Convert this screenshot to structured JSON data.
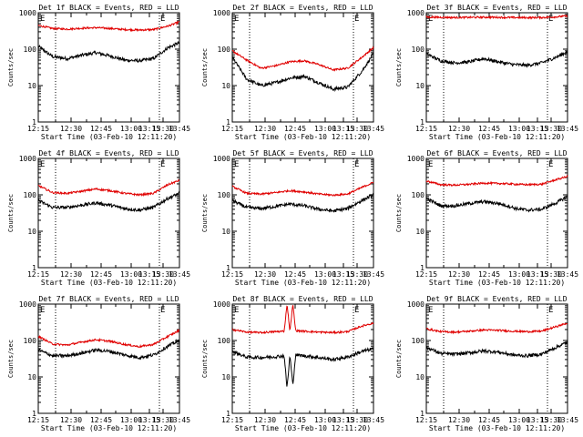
{
  "chart_data": [
    {
      "type": "line",
      "title": "Det 1f BLACK = Events, RED = LLD",
      "ylabel": "Counts/sec",
      "xlabel": "Start Time (03-Feb-10 12:11:20)",
      "xticks": [
        "12:15",
        "12:30",
        "12:45",
        "13:00",
        "13:15",
        "13:30",
        "13:45"
      ],
      "yticks": [
        "1",
        "10",
        "100",
        "1000"
      ],
      "ylim": [
        1,
        1000
      ],
      "xrange_minutes": [
        0,
        98
      ],
      "yscale": "log",
      "markers": [
        "E",
        "E"
      ],
      "series": [
        {
          "color": "#000000",
          "x": [
            0,
            10,
            20,
            30,
            40,
            50,
            60,
            70,
            80,
            90,
            98
          ],
          "values": [
            120,
            62,
            55,
            68,
            80,
            65,
            50,
            48,
            55,
            110,
            150
          ]
        },
        {
          "color": "#e00000",
          "x": [
            0,
            10,
            20,
            30,
            40,
            50,
            60,
            70,
            80,
            90,
            98
          ],
          "values": [
            450,
            370,
            355,
            375,
            390,
            370,
            345,
            335,
            345,
            430,
            560
          ]
        }
      ]
    },
    {
      "type": "line",
      "title": "Det 2f BLACK = Events, RED = LLD",
      "ylabel": "Counts/sec",
      "xlabel": "Start Time (03-Feb-10 12:11:20)",
      "xticks": [
        "12:15",
        "12:30",
        "12:45",
        "13:00",
        "13:15",
        "13:30",
        "13:45"
      ],
      "yticks": [
        "1",
        "10",
        "100",
        "1000"
      ],
      "ylim": [
        1,
        1000
      ],
      "xrange_minutes": [
        0,
        98
      ],
      "yscale": "log",
      "markers": [
        "E",
        "E"
      ],
      "series": [
        {
          "color": "#000000",
          "x": [
            0,
            10,
            20,
            30,
            40,
            50,
            60,
            70,
            80,
            90,
            98
          ],
          "values": [
            60,
            15,
            10,
            12,
            16,
            18,
            12,
            8,
            9,
            25,
            75
          ]
        },
        {
          "color": "#e00000",
          "x": [
            0,
            10,
            20,
            30,
            40,
            50,
            60,
            70,
            80,
            90,
            98
          ],
          "values": [
            90,
            50,
            30,
            35,
            45,
            48,
            38,
            27,
            30,
            60,
            110
          ]
        }
      ]
    },
    {
      "type": "line",
      "title": "Det 3f BLACK = Events, RED = LLD",
      "ylabel": "Counts/sec",
      "xlabel": "Start Time (03-Feb-10 12:11:20)",
      "xticks": [
        "12:15",
        "12:30",
        "12:45",
        "13:00",
        "13:15",
        "13:30",
        "13:45"
      ],
      "yticks": [
        "1",
        "10",
        "100",
        "1000"
      ],
      "ylim": [
        1,
        1000
      ],
      "xrange_minutes": [
        0,
        98
      ],
      "yscale": "log",
      "markers": [
        "E",
        "E"
      ],
      "series": [
        {
          "color": "#000000",
          "x": [
            0,
            10,
            20,
            30,
            40,
            50,
            60,
            70,
            80,
            90,
            98
          ],
          "values": [
            75,
            48,
            42,
            45,
            55,
            45,
            38,
            36,
            42,
            60,
            85
          ]
        },
        {
          "color": "#e00000",
          "x": [
            0,
            10,
            20,
            30,
            40,
            50,
            60,
            70,
            80,
            90,
            98
          ],
          "values": [
            760,
            750,
            740,
            745,
            755,
            748,
            738,
            735,
            740,
            770,
            820
          ]
        }
      ]
    },
    {
      "type": "line",
      "title": "Det 4f BLACK = Events, RED = LLD",
      "ylabel": "Counts/sec",
      "xlabel": "Start Time (03-Feb-10 12:11:20)",
      "xticks": [
        "12:15",
        "12:30",
        "12:45",
        "13:00",
        "13:15",
        "13:30",
        "13:45"
      ],
      "yticks": [
        "1",
        "10",
        "100",
        "1000"
      ],
      "ylim": [
        1,
        1000
      ],
      "xrange_minutes": [
        0,
        98
      ],
      "yscale": "log",
      "markers": [
        "E",
        "E"
      ],
      "series": [
        {
          "color": "#000000",
          "x": [
            0,
            10,
            20,
            30,
            40,
            50,
            60,
            70,
            80,
            90,
            98
          ],
          "values": [
            70,
            45,
            45,
            52,
            60,
            52,
            42,
            38,
            45,
            80,
            110
          ]
        },
        {
          "color": "#e00000",
          "x": [
            0,
            10,
            20,
            30,
            40,
            50,
            60,
            70,
            80,
            90,
            98
          ],
          "values": [
            180,
            115,
            110,
            125,
            145,
            130,
            110,
            100,
            110,
            190,
            250
          ]
        }
      ]
    },
    {
      "type": "line",
      "title": "Det 5f BLACK = Events, RED = LLD",
      "ylabel": "Counts/sec",
      "xlabel": "Start Time (03-Feb-10 12:11:20)",
      "xticks": [
        "12:15",
        "12:30",
        "12:45",
        "13:00",
        "13:15",
        "13:30",
        "13:45"
      ],
      "yticks": [
        "1",
        "10",
        "100",
        "1000"
      ],
      "ylim": [
        1,
        1000
      ],
      "xrange_minutes": [
        0,
        98
      ],
      "yscale": "log",
      "markers": [
        "E",
        "E"
      ],
      "series": [
        {
          "color": "#000000",
          "x": [
            0,
            10,
            20,
            30,
            40,
            50,
            60,
            70,
            80,
            90,
            98
          ],
          "values": [
            70,
            45,
            42,
            48,
            56,
            50,
            40,
            36,
            42,
            70,
            100
          ]
        },
        {
          "color": "#e00000",
          "x": [
            0,
            10,
            20,
            30,
            40,
            50,
            60,
            70,
            80,
            90,
            98
          ],
          "values": [
            170,
            110,
            105,
            115,
            130,
            120,
            105,
            98,
            105,
            160,
            220
          ]
        }
      ]
    },
    {
      "type": "line",
      "title": "Det 6f BLACK = Events, RED = LLD",
      "ylabel": "Counts/sec",
      "xlabel": "Start Time (03-Feb-10 12:11:20)",
      "xticks": [
        "12:15",
        "12:30",
        "12:45",
        "13:00",
        "13:15",
        "13:30",
        "13:45"
      ],
      "yticks": [
        "1",
        "10",
        "100",
        "1000"
      ],
      "ylim": [
        1,
        1000
      ],
      "xrange_minutes": [
        0,
        98
      ],
      "yscale": "log",
      "markers": [
        "E",
        "E"
      ],
      "series": [
        {
          "color": "#000000",
          "x": [
            0,
            10,
            20,
            30,
            40,
            50,
            58,
            62,
            70,
            80,
            90,
            98
          ],
          "values": [
            80,
            50,
            50,
            58,
            65,
            58,
            48,
            42,
            38,
            40,
            60,
            90
          ]
        },
        {
          "color": "#e00000",
          "x": [
            0,
            10,
            20,
            30,
            40,
            50,
            58,
            62,
            70,
            80,
            90,
            98
          ],
          "values": [
            240,
            190,
            185,
            195,
            210,
            205,
            200,
            195,
            190,
            195,
            260,
            320
          ]
        }
      ]
    },
    {
      "type": "line",
      "title": "Det 7f BLACK = Events, RED = LLD",
      "ylabel": "Counts/sec",
      "xlabel": "Start Time (03-Feb-10 12:11:20)",
      "xticks": [
        "12:15",
        "12:30",
        "12:45",
        "13:00",
        "13:15",
        "13:30",
        "13:45"
      ],
      "yticks": [
        "1",
        "10",
        "100",
        "1000"
      ],
      "ylim": [
        1,
        1000
      ],
      "xrange_minutes": [
        0,
        98
      ],
      "yscale": "log",
      "markers": [
        "E",
        "E"
      ],
      "series": [
        {
          "color": "#000000",
          "x": [
            0,
            10,
            20,
            30,
            40,
            50,
            60,
            70,
            80,
            90,
            98
          ],
          "values": [
            55,
            38,
            38,
            45,
            55,
            50,
            40,
            34,
            40,
            70,
            100
          ]
        },
        {
          "color": "#e00000",
          "x": [
            0,
            10,
            20,
            30,
            40,
            50,
            60,
            70,
            80,
            90,
            98
          ],
          "values": [
            130,
            80,
            75,
            90,
            105,
            95,
            78,
            68,
            78,
            130,
            190
          ]
        }
      ]
    },
    {
      "type": "line",
      "title": "Det 8f BLACK = Events, RED = LLD",
      "ylabel": "Counts/sec",
      "xlabel": "Start Time (03-Feb-10 12:11:20)",
      "xticks": [
        "12:15",
        "12:30",
        "12:45",
        "13:00",
        "13:15",
        "13:30",
        "13:45"
      ],
      "yticks": [
        "1",
        "10",
        "100",
        "1000"
      ],
      "ylim": [
        1,
        1000
      ],
      "xrange_minutes": [
        0,
        98
      ],
      "yscale": "log",
      "markers": [
        "E",
        "E"
      ],
      "series": [
        {
          "color": "#000000",
          "x": [
            0,
            10,
            20,
            30,
            36,
            38,
            40,
            42,
            44,
            50,
            60,
            70,
            80,
            90,
            98
          ],
          "values": [
            50,
            35,
            34,
            36,
            38,
            5,
            38,
            6,
            40,
            38,
            34,
            30,
            35,
            50,
            60
          ]
        },
        {
          "color": "#e00000",
          "x": [
            0,
            10,
            20,
            30,
            36,
            38,
            40,
            42,
            44,
            50,
            60,
            70,
            80,
            90,
            98
          ],
          "values": [
            200,
            170,
            165,
            175,
            180,
            1000,
            180,
            1000,
            185,
            180,
            170,
            165,
            175,
            250,
            300
          ]
        }
      ]
    },
    {
      "type": "line",
      "title": "Det 9f BLACK = Events, RED = LLD",
      "ylabel": "Counts/sec",
      "xlabel": "Start Time (03-Feb-10 12:11:20)",
      "xticks": [
        "12:15",
        "12:30",
        "12:45",
        "13:00",
        "13:15",
        "13:30",
        "13:45"
      ],
      "yticks": [
        "1",
        "10",
        "100",
        "1000"
      ],
      "ylim": [
        1,
        1000
      ],
      "xrange_minutes": [
        0,
        98
      ],
      "yscale": "log",
      "markers": [
        "E",
        "E"
      ],
      "series": [
        {
          "color": "#000000",
          "x": [
            0,
            10,
            20,
            30,
            40,
            50,
            60,
            70,
            80,
            90,
            98
          ],
          "values": [
            65,
            44,
            42,
            46,
            52,
            48,
            40,
            38,
            42,
            65,
            90
          ]
        },
        {
          "color": "#e00000",
          "x": [
            0,
            10,
            20,
            30,
            40,
            50,
            60,
            70,
            80,
            90,
            98
          ],
          "values": [
            210,
            175,
            170,
            180,
            195,
            190,
            180,
            175,
            180,
            240,
            300
          ]
        }
      ]
    }
  ]
}
